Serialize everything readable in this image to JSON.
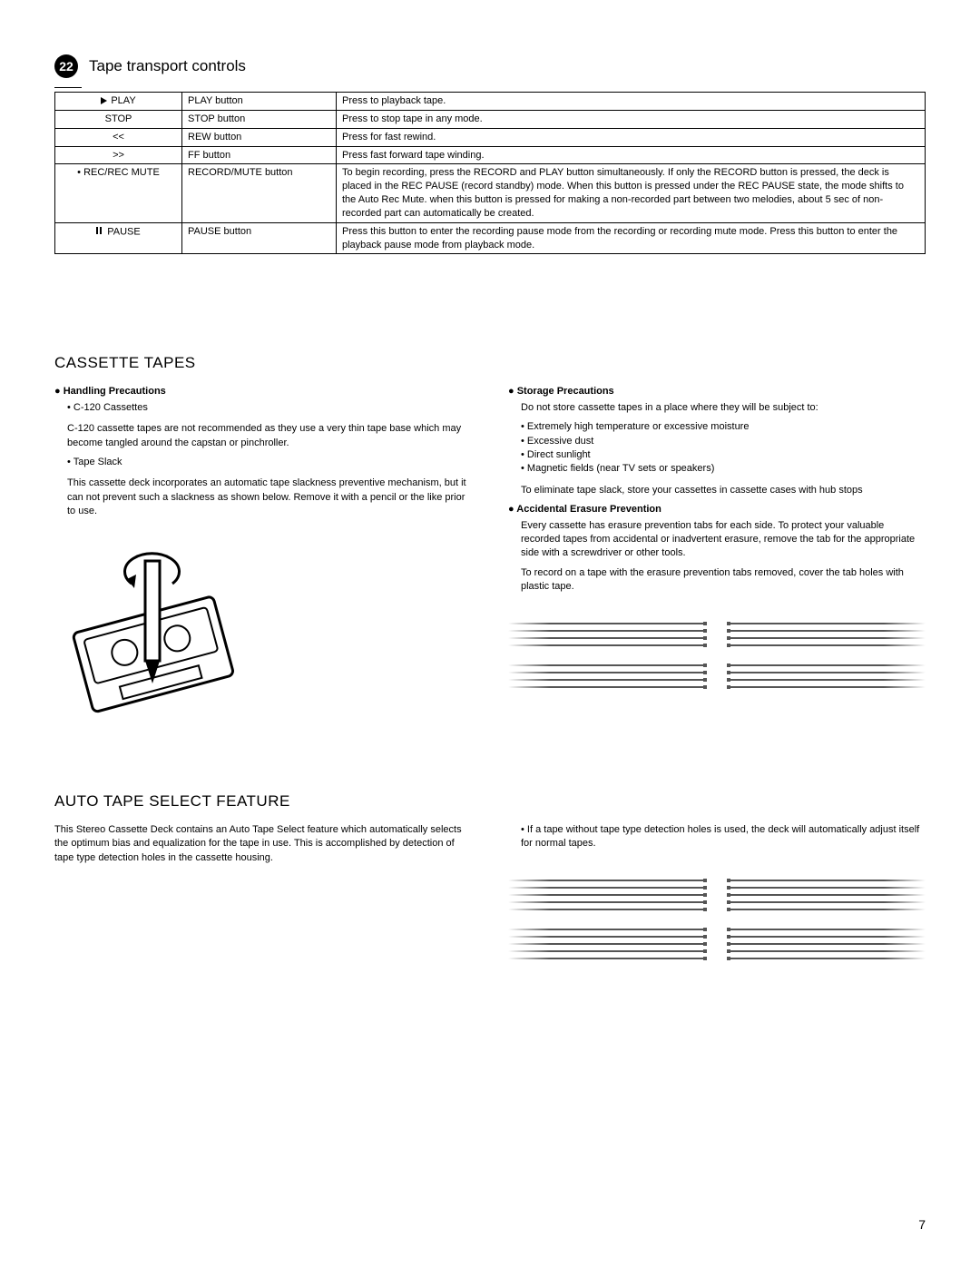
{
  "header": {
    "number": "22",
    "title": "Tape transport controls"
  },
  "controls_table": {
    "rows": [
      {
        "c1_icon": "play",
        "c1": "PLAY",
        "c2": "PLAY button",
        "c3": "Press to playback tape."
      },
      {
        "c1": "STOP",
        "c2": "STOP button",
        "c3": "Press to stop tape in any mode."
      },
      {
        "c1": "<<",
        "c2": "REW button",
        "c3": "Press for fast rewind."
      },
      {
        "c1": ">>",
        "c2": "FF button",
        "c3": "Press fast forward tape winding."
      },
      {
        "c1_prefix": "• ",
        "c1": "REC/REC MUTE",
        "c2": "RECORD/MUTE button",
        "c3": "To begin recording, press the RECORD and PLAY button simultaneously. If only the RECORD button is pressed, the deck is placed in the REC PAUSE (record standby) mode. When this button is pressed under the REC PAUSE state, the mode shifts to the Auto Rec Mute. when this button is pressed for making a non-recorded part between two melodies, about 5 sec of non-recorded part can automatically be created."
      },
      {
        "c1_icon": "pause",
        "c1": "PAUSE",
        "c2": "PAUSE button",
        "c3": "Press this button to enter the recording pause mode from the recording or recording mute mode. Press this button to enter the playback pause mode from playback mode."
      }
    ]
  },
  "cassette": {
    "title": "CASSETTE TAPES",
    "handling_head": "Handling Precautions",
    "c120_head": "C-120 Cassettes",
    "c120_text": "C-120 cassette tapes are not recommended as they use a very thin tape base which may become tangled around the capstan or pinchroller.",
    "slack_head": "Tape Slack",
    "slack_text": "This cassette deck incorporates an automatic tape slackness preventive mechanism, but it can not prevent such a slackness as shown below. Remove it with a pencil or the like prior to use.",
    "storage_head": "Storage Precautions",
    "storage_intro": "Do not store cassette tapes in a place where they will be subject to:",
    "storage_items": [
      "Extremely high temperature or excessive moisture",
      "Excessive dust",
      "Direct sunlight",
      "Magnetic fields (near TV sets or speakers)"
    ],
    "storage_outro": "To eliminate tape slack, store your cassettes in cassette cases with hub stops",
    "erasure_head": "Accidental Erasure Prevention",
    "erasure_p1": "Every cassette has erasure prevention tabs for each side. To protect your valuable recorded tapes from accidental or inadvertent erasure, remove the tab for the appropriate side with a screwdriver or other tools.",
    "erasure_p2": "To record on a tape with the erasure prevention tabs removed, cover the tab holes with plastic tape."
  },
  "auto_tape": {
    "title": "AUTO TAPE SELECT FEATURE",
    "left": "This Stereo Cassette Deck contains an Auto Tape Select feature which automatically selects the optimum bias and equalization for the tape in use. This is accomplished by detection of tape type detection holes in the cassette housing.",
    "right": "If a tape without tape type detection holes is used, the deck will automatically adjust itself for normal tapes."
  },
  "page_number": "7"
}
